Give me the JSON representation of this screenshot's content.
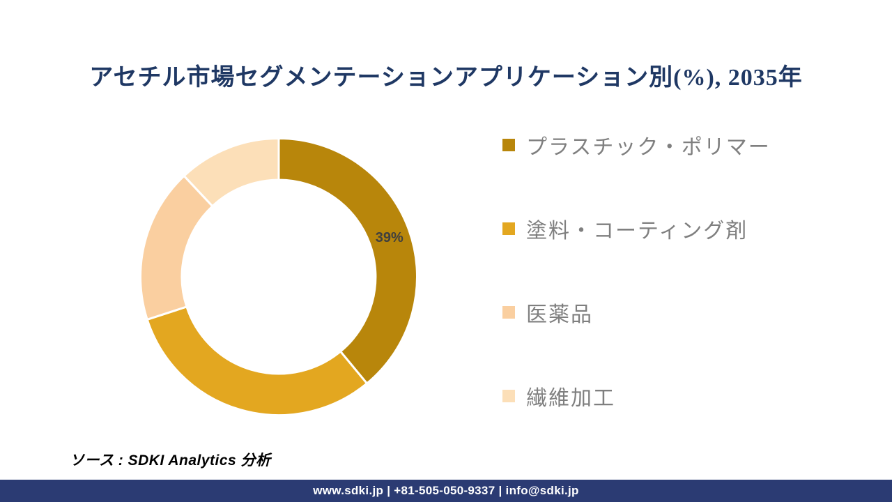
{
  "page": {
    "title": "アセチル市場セグメンテーションアプリケーション別(%), 2035年",
    "source_text": "ソース : SDKI Analytics 分析",
    "footer_text": "www.sdki.jp | +81-505-050-9337 | info@sdki.jp"
  },
  "colors": {
    "title_navy": "#1F3864",
    "footer_navy": "#2B3B73",
    "legend_text_gray": "#7F7F7F",
    "data_label_gray": "#3F3F3F",
    "slice_gap": "#FFFFFF"
  },
  "chart_data": {
    "type": "pie",
    "subtype": "donut",
    "title": "アセチル市場セグメンテーションアプリケーション別(%), 2035年",
    "categories": [
      "プラスチック・ポリマー",
      "塗料・コーティング剤",
      "医薬品",
      "繊維加工"
    ],
    "values": [
      39,
      31,
      18,
      12
    ],
    "unit": "%",
    "colors": [
      "#B8860B",
      "#E3A720",
      "#FACFA0",
      "#FCDFB8"
    ],
    "data_labels": [
      "39%",
      null,
      null,
      null
    ],
    "start_angle_deg": 0,
    "direction": "clockwise",
    "inner_radius_ratio": 0.7,
    "legend_position": "right",
    "grid": false
  }
}
